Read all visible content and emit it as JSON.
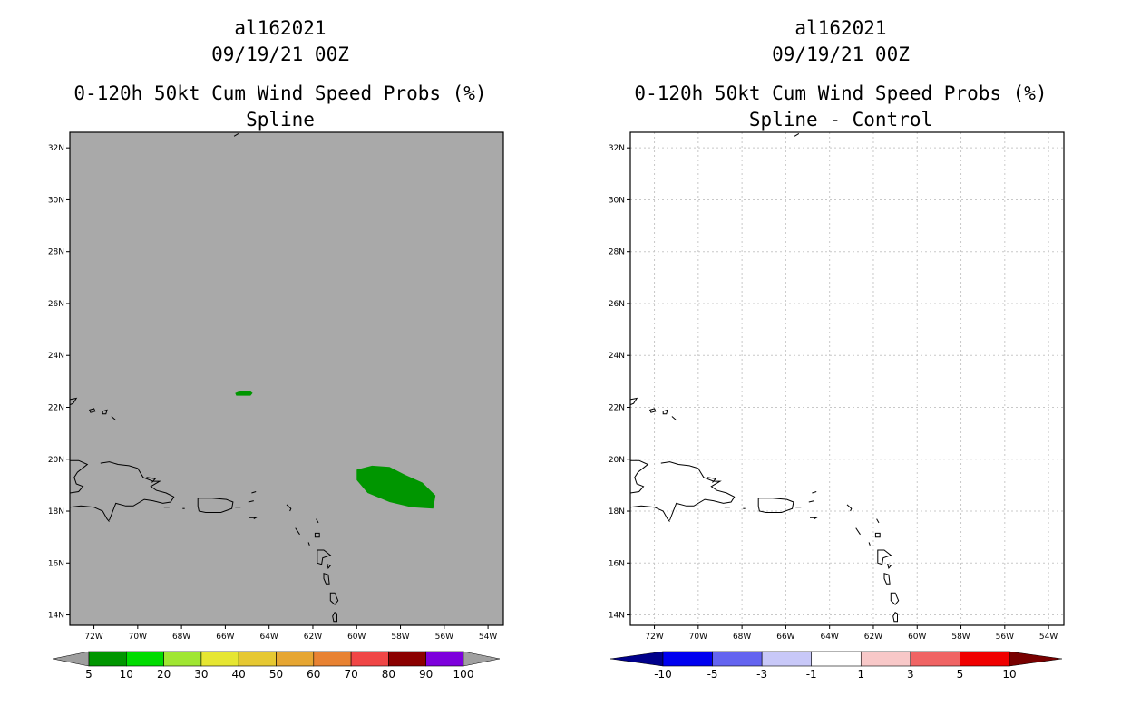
{
  "panels": [
    {
      "storm_id": "al162021",
      "datetime": "09/19/21 00Z",
      "product": "0-120h 50kt Cum Wind Speed Probs (%)",
      "variant": "Spline",
      "background": "#a9a9a9",
      "lat_ticks": [
        "32N",
        "30N",
        "28N",
        "26N",
        "24N",
        "22N",
        "20N",
        "18N",
        "16N",
        "14N"
      ],
      "lon_ticks": [
        "72W",
        "70W",
        "68W",
        "66W",
        "64W",
        "62W",
        "60W",
        "58W",
        "56W",
        "54W"
      ],
      "colorbar": {
        "labels": [
          "5",
          "10",
          "20",
          "30",
          "40",
          "50",
          "60",
          "70",
          "80",
          "90",
          "100"
        ],
        "colors": [
          "#9e9e9e",
          "#009600",
          "#00dc00",
          "#a0e632",
          "#e6e632",
          "#e6c832",
          "#e6a632",
          "#e88232",
          "#f04646",
          "#8b0000",
          "#7d00dc",
          "#a0a0a0"
        ]
      },
      "shaded_regions": [
        {
          "lon_lat": [
            [
              -65.4,
              22.6
            ],
            [
              -64.9,
              22.65
            ],
            [
              -64.75,
              22.55
            ],
            [
              -64.85,
              22.45
            ],
            [
              -65.5,
              22.45
            ],
            [
              -65.55,
              22.55
            ]
          ],
          "value_band": "5-10"
        },
        {
          "lon_lat": [
            [
              -60.0,
              19.6
            ],
            [
              -59.3,
              19.75
            ],
            [
              -58.5,
              19.7
            ],
            [
              -57.8,
              19.4
            ],
            [
              -57.0,
              19.1
            ],
            [
              -56.4,
              18.6
            ],
            [
              -56.5,
              18.1
            ],
            [
              -57.5,
              18.15
            ],
            [
              -58.5,
              18.35
            ],
            [
              -59.5,
              18.7
            ],
            [
              -60.0,
              19.2
            ]
          ],
          "value_band": "5-10"
        }
      ]
    },
    {
      "storm_id": "al162021",
      "datetime": "09/19/21 00Z",
      "product": "0-120h 50kt Cum Wind Speed Probs (%)",
      "variant": "Spline - Control",
      "background": "#ffffff",
      "lat_ticks": [
        "32N",
        "30N",
        "28N",
        "26N",
        "24N",
        "22N",
        "20N",
        "18N",
        "16N",
        "14N"
      ],
      "lon_ticks": [
        "72W",
        "70W",
        "68W",
        "66W",
        "64W",
        "62W",
        "60W",
        "58W",
        "56W",
        "54W"
      ],
      "colorbar": {
        "labels": [
          "-10",
          "-5",
          "-3",
          "-1",
          "1",
          "3",
          "5",
          "10"
        ],
        "colors": [
          "#00008b",
          "#0000f0",
          "#6464f0",
          "#c8c8f8",
          "#ffffff",
          "#f8c8c8",
          "#f06464",
          "#f00000",
          "#780000"
        ]
      },
      "shaded_regions": []
    }
  ]
}
